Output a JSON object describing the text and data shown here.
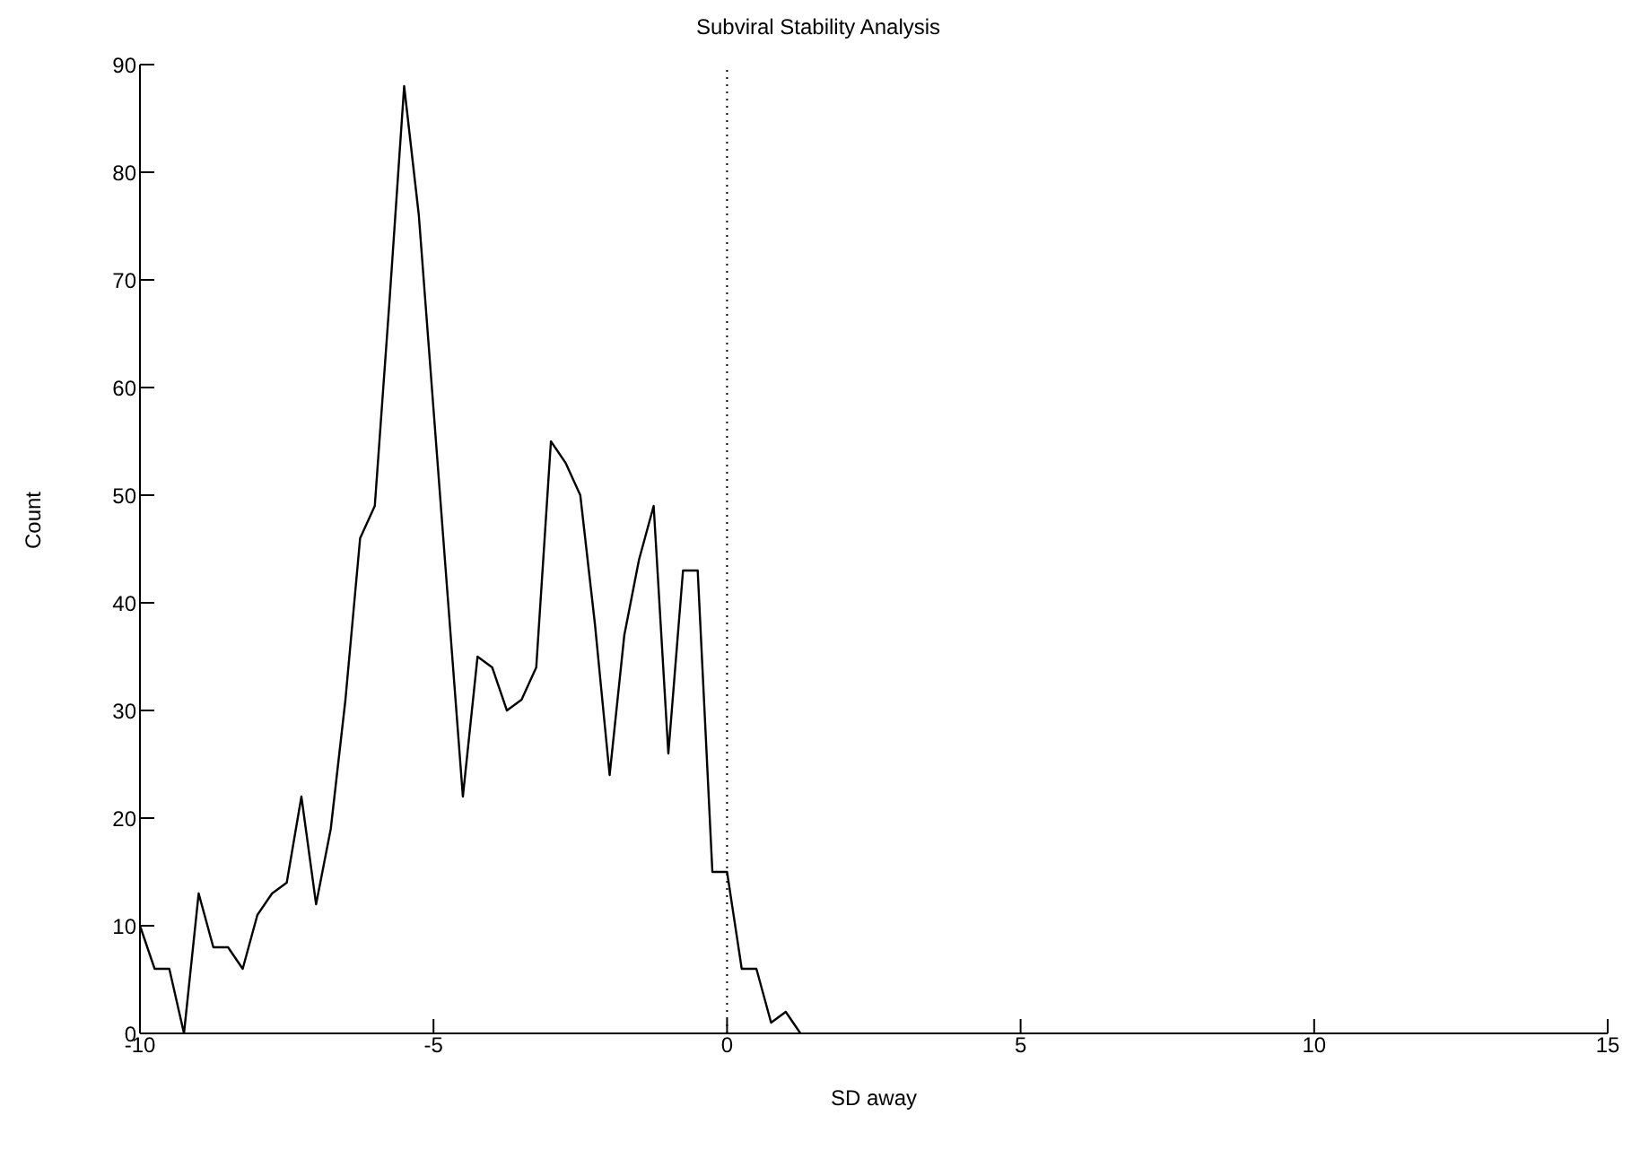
{
  "chart_data": {
    "type": "line",
    "title": "Subviral Stability Analysis",
    "xlabel": "SD away",
    "ylabel": "Count",
    "x": [
      -10,
      -9.75,
      -9.5,
      -9.25,
      -9,
      -8.75,
      -8.5,
      -8.25,
      -8,
      -7.75,
      -7.5,
      -7.25,
      -7,
      -6.75,
      -6.5,
      -6.25,
      -6,
      -5.75,
      -5.5,
      -5.25,
      -5,
      -4.75,
      -4.5,
      -4.25,
      -4,
      -3.75,
      -3.5,
      -3.25,
      -3,
      -2.75,
      -2.5,
      -2.25,
      -2,
      -1.75,
      -1.5,
      -1.25,
      -1,
      -0.75,
      -0.5,
      -0.25,
      0,
      0.25,
      0.5,
      0.75,
      1,
      1.25
    ],
    "series": [
      {
        "color": "#000000",
        "values": [
          10,
          6,
          6,
          0,
          13,
          8,
          8,
          6,
          11,
          13,
          14,
          22,
          12,
          19,
          31,
          46,
          49,
          68,
          88,
          76,
          58,
          40,
          22,
          35,
          34,
          30,
          31,
          34,
          55,
          53,
          50,
          38,
          24,
          37,
          44,
          49,
          26,
          43,
          43,
          15,
          15,
          6,
          6,
          1,
          2,
          0
        ]
      }
    ],
    "xlim": [
      -10,
      15
    ],
    "xticks": [
      -10,
      -5,
      0,
      5,
      10,
      15
    ],
    "ylim": [
      0,
      90
    ],
    "yticks": [
      0,
      10,
      20,
      30,
      40,
      50,
      60,
      70,
      80,
      90
    ],
    "grid": false,
    "legend": false,
    "marker": "none",
    "line_style": "solid",
    "ref_lines": [
      {
        "axis": "x",
        "value": 0,
        "line_style": "dotted",
        "color": "#000000"
      }
    ]
  }
}
